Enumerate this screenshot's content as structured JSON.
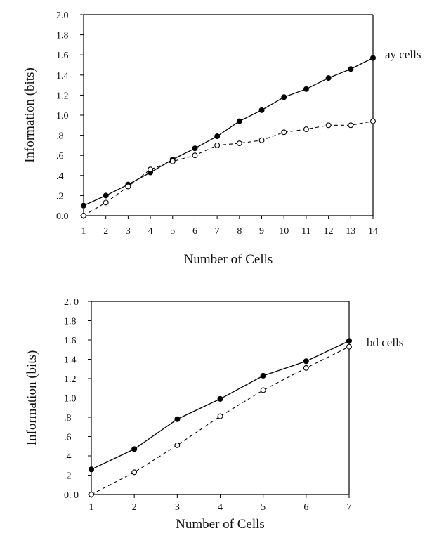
{
  "chart_data": [
    {
      "type": "line",
      "panel_label": "ay cells",
      "xlabel": "Number of Cells",
      "ylabel": "Information (bits)",
      "xlim": [
        1,
        14
      ],
      "ylim": [
        0,
        2.0
      ],
      "x_ticks": [
        1,
        2,
        3,
        4,
        5,
        6,
        7,
        8,
        9,
        10,
        11,
        12,
        13,
        14
      ],
      "y_ticks": [
        0.0,
        0.2,
        0.4,
        0.6,
        0.8,
        1.0,
        1.2,
        1.4,
        1.6,
        1.8,
        2.0
      ],
      "y_tick_labels": [
        "0.0",
        ".2",
        ".4",
        ".6",
        ".8",
        "1.0",
        "1.2",
        "1.4",
        "1.6",
        "1.8",
        "2.0"
      ],
      "grid": false,
      "series": [
        {
          "style": "solid",
          "marker": "filled-circle",
          "x": [
            1,
            2,
            3,
            4,
            5,
            6,
            7,
            8,
            9,
            10,
            11,
            12,
            13,
            14
          ],
          "values": [
            0.1,
            0.2,
            0.31,
            0.43,
            0.56,
            0.67,
            0.79,
            0.94,
            1.05,
            1.18,
            1.26,
            1.37,
            1.46,
            1.57
          ]
        },
        {
          "style": "dashed",
          "marker": "open-circle",
          "x": [
            1,
            2,
            3,
            4,
            5,
            6,
            7,
            8,
            9,
            10,
            11,
            12,
            13,
            14
          ],
          "values": [
            0.0,
            0.13,
            0.29,
            0.46,
            0.54,
            0.6,
            0.7,
            0.72,
            0.75,
            0.83,
            0.86,
            0.9,
            0.9,
            0.94
          ]
        }
      ]
    },
    {
      "type": "line",
      "panel_label": "bd cells",
      "xlabel": "Number of Cells",
      "ylabel": "Information (bits)",
      "xlim": [
        1,
        7
      ],
      "ylim": [
        0,
        2.0
      ],
      "x_ticks": [
        1,
        2,
        3,
        4,
        5,
        6,
        7
      ],
      "y_ticks": [
        0.0,
        0.2,
        0.4,
        0.6,
        0.8,
        1.0,
        1.2,
        1.4,
        1.6,
        1.8,
        2.0
      ],
      "y_tick_labels": [
        "0. 0",
        ".2",
        ".4",
        ".6",
        ".8",
        "1.0",
        "1.2",
        "1.4",
        "1.6",
        "1.8",
        "2. 0"
      ],
      "grid": false,
      "series": [
        {
          "style": "solid",
          "marker": "filled-circle",
          "x": [
            1,
            2,
            3,
            4,
            5,
            6,
            7
          ],
          "values": [
            0.26,
            0.47,
            0.78,
            0.99,
            1.23,
            1.38,
            1.59
          ]
        },
        {
          "style": "dashed",
          "marker": "open-circle",
          "x": [
            1,
            2,
            3,
            4,
            5,
            6,
            7
          ],
          "values": [
            0.0,
            0.23,
            0.51,
            0.81,
            1.08,
            1.31,
            1.53
          ]
        }
      ]
    }
  ]
}
